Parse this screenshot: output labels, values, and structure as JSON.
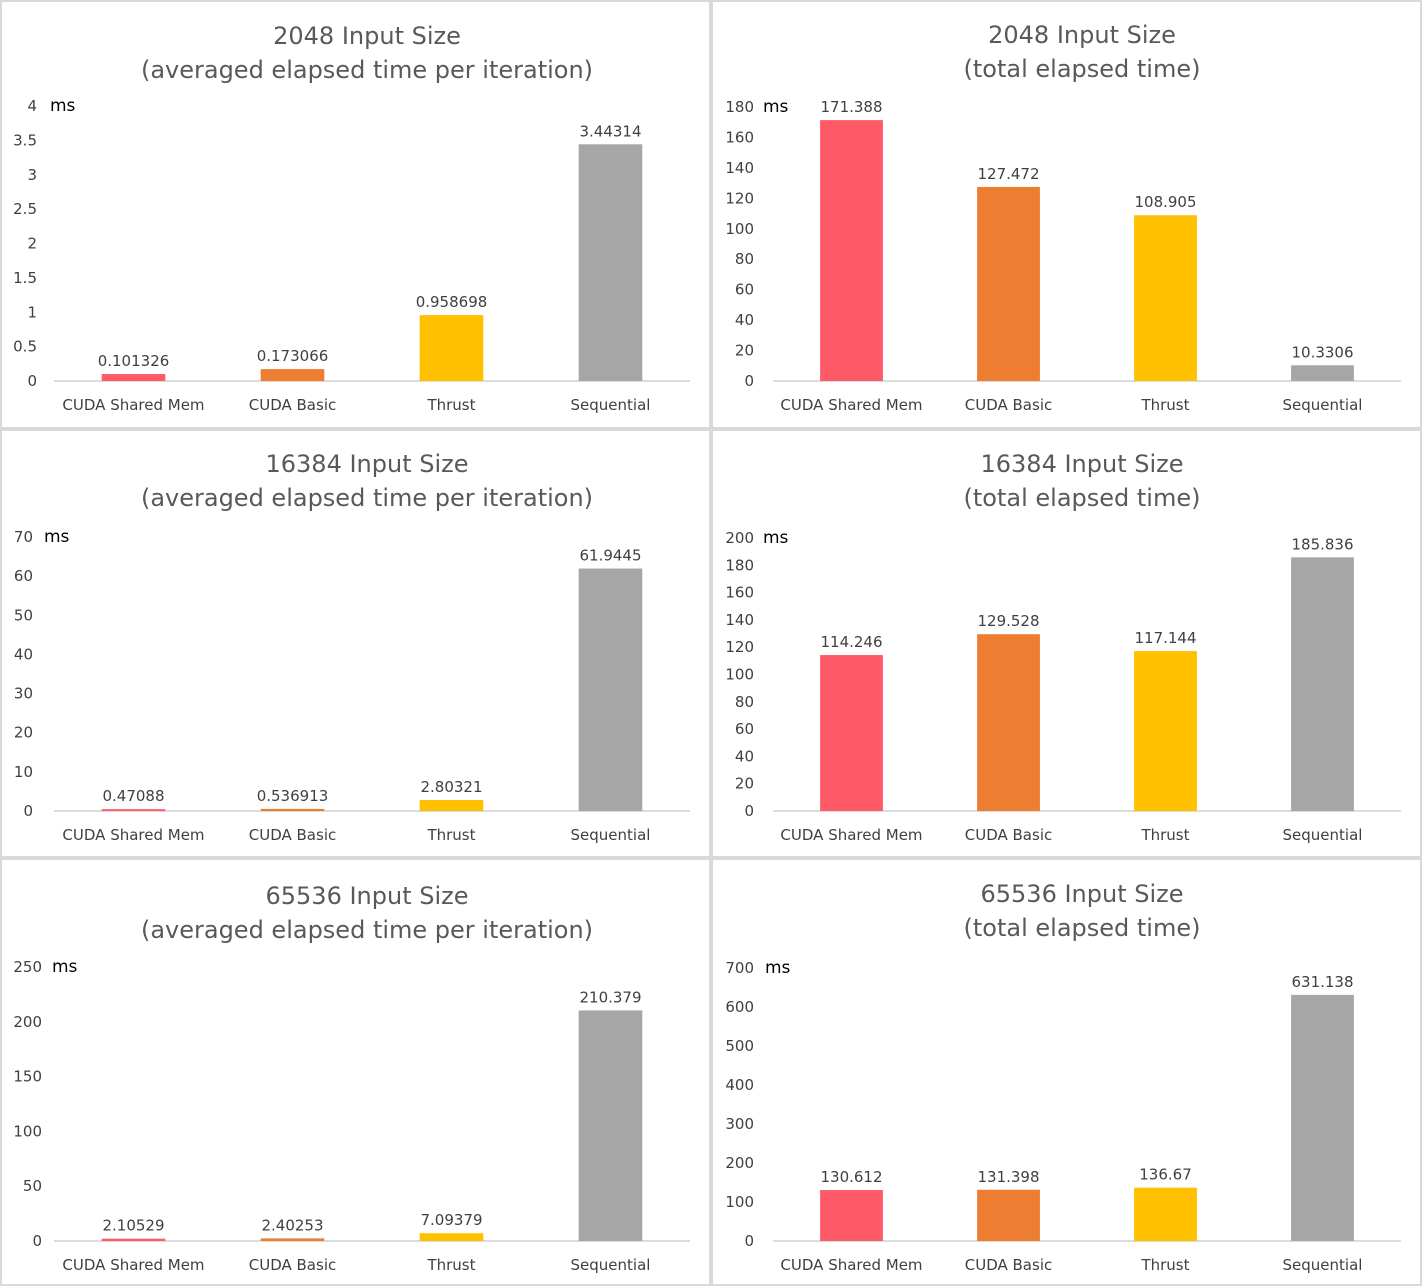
{
  "colors": {
    "cuda_shared_mem": "#ff5a67",
    "cuda_basic": "#ed7d31",
    "thrust": "#ffc000",
    "sequential": "#a6a6a6"
  },
  "chart_data": [
    {
      "type": "bar",
      "title": [
        "2048 Input Size",
        "(averaged elapsed time per iteration)"
      ],
      "unit": "ms",
      "categories": [
        "CUDA Shared Mem",
        "CUDA Basic",
        "Thrust",
        "Sequential"
      ],
      "values": [
        0.101326,
        0.173066,
        0.958698,
        3.44314
      ],
      "value_labels": [
        "0.101326",
        "0.173066",
        "0.958698",
        "3.44314"
      ],
      "ylim": [
        0,
        4
      ],
      "yticks": [
        0,
        0.5,
        1,
        1.5,
        2,
        2.5,
        3,
        3.5,
        4
      ],
      "ytick_labels": [
        "0",
        "0.5",
        "1",
        "1.5",
        "2",
        "2.5",
        "3",
        "3.5",
        "4"
      ]
    },
    {
      "type": "bar",
      "title": [
        "2048 Input Size",
        "(total elapsed time)"
      ],
      "unit": "ms",
      "categories": [
        "CUDA Shared Mem",
        "CUDA Basic",
        "Thrust",
        "Sequential"
      ],
      "values": [
        171.388,
        127.472,
        108.905,
        10.3306
      ],
      "value_labels": [
        "171.388",
        "127.472",
        "108.905",
        "10.3306"
      ],
      "ylim": [
        0,
        180
      ],
      "yticks": [
        0,
        20,
        40,
        60,
        80,
        100,
        120,
        140,
        160,
        180
      ],
      "ytick_labels": [
        "0",
        "20",
        "40",
        "60",
        "80",
        "100",
        "120",
        "140",
        "160",
        "180"
      ]
    },
    {
      "type": "bar",
      "title": [
        "16384 Input Size",
        "(averaged elapsed time per iteration)"
      ],
      "unit": "ms",
      "categories": [
        "CUDA Shared Mem",
        "CUDA Basic",
        "Thrust",
        "Sequential"
      ],
      "values": [
        0.47088,
        0.536913,
        2.80321,
        61.9445
      ],
      "value_labels": [
        "0.47088",
        "0.536913",
        "2.80321",
        "61.9445"
      ],
      "ylim": [
        0,
        70
      ],
      "yticks": [
        0,
        10,
        20,
        30,
        40,
        50,
        60,
        70
      ],
      "ytick_labels": [
        "0",
        "10",
        "20",
        "30",
        "40",
        "50",
        "60",
        "70"
      ]
    },
    {
      "type": "bar",
      "title": [
        "16384 Input Size",
        "(total elapsed time)"
      ],
      "unit": "ms",
      "categories": [
        "CUDA Shared Mem",
        "CUDA Basic",
        "Thrust",
        "Sequential"
      ],
      "values": [
        114.246,
        129.528,
        117.144,
        185.836
      ],
      "value_labels": [
        "114.246",
        "129.528",
        "117.144",
        "185.836"
      ],
      "ylim": [
        0,
        200
      ],
      "yticks": [
        0,
        20,
        40,
        60,
        80,
        100,
        120,
        140,
        160,
        180,
        200
      ],
      "ytick_labels": [
        "0",
        "20",
        "40",
        "60",
        "80",
        "100",
        "120",
        "140",
        "160",
        "180",
        "200"
      ]
    },
    {
      "type": "bar",
      "title": [
        "65536 Input Size",
        "(averaged elapsed time per iteration)"
      ],
      "unit": "ms",
      "categories": [
        "CUDA Shared Mem",
        "CUDA Basic",
        "Thrust",
        "Sequential"
      ],
      "values": [
        2.10529,
        2.40253,
        7.09379,
        210.379
      ],
      "value_labels": [
        "2.10529",
        "2.40253",
        "7.09379",
        "210.379"
      ],
      "ylim": [
        0,
        250
      ],
      "yticks": [
        0,
        50,
        100,
        150,
        200,
        250
      ],
      "ytick_labels": [
        "0",
        "50",
        "100",
        "150",
        "200",
        "250"
      ]
    },
    {
      "type": "bar",
      "title": [
        "65536 Input Size",
        "(total elapsed time)"
      ],
      "unit": "ms",
      "categories": [
        "CUDA Shared Mem",
        "CUDA Basic",
        "Thrust",
        "Sequential"
      ],
      "values": [
        130.612,
        131.398,
        136.67,
        631.138
      ],
      "value_labels": [
        "130.612",
        "131.398",
        "136.67",
        "631.138"
      ],
      "ylim": [
        0,
        700
      ],
      "yticks": [
        0,
        100,
        200,
        300,
        400,
        500,
        600,
        700
      ],
      "ytick_labels": [
        "0",
        "100",
        "200",
        "300",
        "400",
        "500",
        "600",
        "700"
      ]
    }
  ]
}
